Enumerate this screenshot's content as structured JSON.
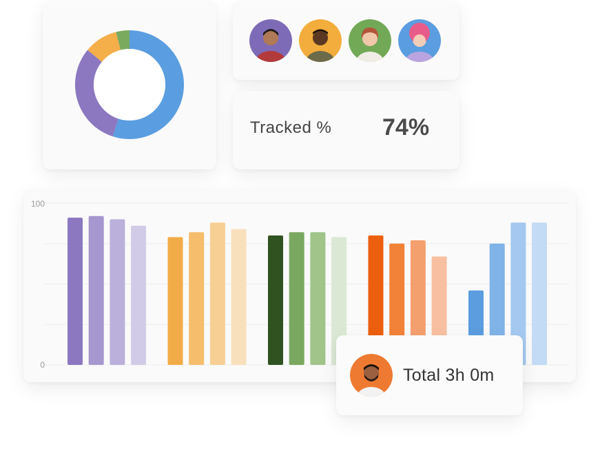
{
  "donut_card": {
    "chart_data": {
      "type": "pie",
      "values": [
        55,
        31,
        10,
        4
      ],
      "colors": [
        "#5a9de0",
        "#8b78c0",
        "#f4ae4a",
        "#7aaa5e"
      ]
    }
  },
  "avatars": [
    {
      "name": "avatar-1",
      "bg": "#7e6bb7",
      "icon": "person-photo"
    },
    {
      "name": "avatar-2",
      "bg": "#f3ad3c",
      "icon": "person-photo"
    },
    {
      "name": "avatar-3",
      "bg": "#72a957",
      "icon": "person-photo"
    },
    {
      "name": "avatar-4",
      "bg": "#5a9de0",
      "icon": "person-photo"
    }
  ],
  "tracked": {
    "label": "Tracked %",
    "value": "74%"
  },
  "chart_data": {
    "type": "bar",
    "ylim": [
      0,
      100
    ],
    "ytick_labels": [
      "100",
      "0"
    ],
    "gridlines": 4,
    "groups": [
      {
        "values": [
          91,
          92,
          90,
          86
        ],
        "colors": [
          "#8b78c0",
          "#a697cf",
          "#bbb0db",
          "#d2cbe7"
        ]
      },
      {
        "values": [
          79,
          82,
          88,
          84
        ],
        "colors": [
          "#f2ac47",
          "#f5bd6c",
          "#f7cf95",
          "#f9e0bc"
        ]
      },
      {
        "values": [
          80,
          82,
          82,
          79
        ],
        "colors": [
          "#2f5220",
          "#7ba860",
          "#a0c48a",
          "#dbe8d3"
        ]
      },
      {
        "values": [
          80,
          75,
          77,
          67
        ],
        "colors": [
          "#ec5f0f",
          "#f28238",
          "#f4a06e",
          "#f8c0a0"
        ]
      },
      {
        "values": [
          46,
          75,
          88,
          88
        ],
        "colors": [
          "#5b9ddf",
          "#80b3e7",
          "#a4c8ef",
          "#c3dbf4"
        ]
      }
    ]
  },
  "total": {
    "text": "Total 3h 0m",
    "avatar_bg": "#ee7a31",
    "icon": "person-photo"
  }
}
